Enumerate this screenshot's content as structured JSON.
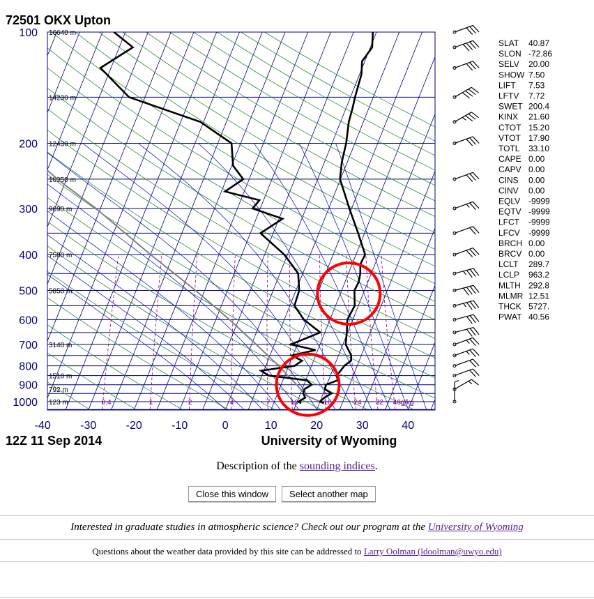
{
  "header": {
    "station_title": "72501 OKX Upton",
    "time_label": "12Z 11 Sep 2014",
    "source_label": "University of Wyoming"
  },
  "chart_data": {
    "type": "skew-t",
    "pressure_ticks": [
      100,
      200,
      300,
      400,
      500,
      600,
      700,
      800,
      900,
      1000
    ],
    "pressure_tick_labels": [
      "100",
      "200",
      "300",
      "400",
      "500",
      "600",
      "700",
      "800",
      "900",
      "1000"
    ],
    "temperature_ticks": [
      -40,
      -30,
      -20,
      -10,
      0,
      10,
      20,
      30,
      40
    ],
    "temperature_tick_labels": [
      "-40",
      "-30",
      "-20",
      "-10",
      "0",
      "10",
      "20",
      "30",
      "40"
    ],
    "xlim": [
      -40,
      45
    ],
    "ylim_pressure": [
      1050,
      100
    ],
    "height_labels": [
      {
        "p": 100,
        "label": "16640 m"
      },
      {
        "p": 150,
        "label": "14230 m"
      },
      {
        "p": 200,
        "label": "12430 m"
      },
      {
        "p": 250,
        "label": "10950 m"
      },
      {
        "p": 300,
        "label": "9690 m"
      },
      {
        "p": 400,
        "label": "7580 m"
      },
      {
        "p": 500,
        "label": "5850 m"
      },
      {
        "p": 700,
        "label": "3140 m"
      },
      {
        "p": 850,
        "label": "1510 m"
      },
      {
        "p": 925,
        "label": "792 m"
      },
      {
        "p": 1000,
        "label": "123 m"
      }
    ],
    "mixing_ratio_labels": [
      "0.4",
      "1",
      "2",
      "4",
      "7",
      "10",
      "16",
      "24",
      "32",
      "40g/kg"
    ],
    "temperature_profile": [
      {
        "p": 1010,
        "t": 21.0
      },
      {
        "p": 1000,
        "t": 20.0
      },
      {
        "p": 975,
        "t": 20.6
      },
      {
        "p": 950,
        "t": 21.8
      },
      {
        "p": 925,
        "t": 20.0
      },
      {
        "p": 900,
        "t": 19.8
      },
      {
        "p": 875,
        "t": 22.0
      },
      {
        "p": 850,
        "t": 21.4
      },
      {
        "p": 800,
        "t": 22.2
      },
      {
        "p": 775,
        "t": 23.2
      },
      {
        "p": 750,
        "t": 22.8
      },
      {
        "p": 700,
        "t": 20.6
      },
      {
        "p": 650,
        "t": 19.8
      },
      {
        "p": 600,
        "t": 18.8
      },
      {
        "p": 550,
        "t": 19.2
      },
      {
        "p": 500,
        "t": 17.8
      },
      {
        "p": 475,
        "t": 18.0
      },
      {
        "p": 450,
        "t": 17.6
      },
      {
        "p": 425,
        "t": 16.8
      },
      {
        "p": 400,
        "t": 17.0
      },
      {
        "p": 350,
        "t": 13.6
      },
      {
        "p": 300,
        "t": 9.5
      },
      {
        "p": 250,
        "t": 4.9
      },
      {
        "p": 225,
        "t": 3.8
      },
      {
        "p": 200,
        "t": 3.1
      },
      {
        "p": 175,
        "t": 1.8
      },
      {
        "p": 160,
        "t": 1.4
      },
      {
        "p": 150,
        "t": 1.0
      },
      {
        "p": 130,
        "t": 0.4
      },
      {
        "p": 120,
        "t": -0.6
      },
      {
        "p": 110,
        "t": 0.4
      },
      {
        "p": 100,
        "t": -0.8
      }
    ],
    "dewpoint_profile": [
      {
        "p": 1010,
        "t": 16.0
      },
      {
        "p": 1000,
        "t": 15.3
      },
      {
        "p": 975,
        "t": 16.4
      },
      {
        "p": 950,
        "t": 15.6
      },
      {
        "p": 925,
        "t": 15.5
      },
      {
        "p": 900,
        "t": 16.7
      },
      {
        "p": 875,
        "t": 15.2
      },
      {
        "p": 850,
        "t": 6.5
      },
      {
        "p": 825,
        "t": 4.4
      },
      {
        "p": 800,
        "t": 11.3
      },
      {
        "p": 775,
        "t": 12.5
      },
      {
        "p": 750,
        "t": 9.8
      },
      {
        "p": 725,
        "t": 14.5
      },
      {
        "p": 700,
        "t": 8.6
      },
      {
        "p": 650,
        "t": 14.0
      },
      {
        "p": 600,
        "t": 9.3
      },
      {
        "p": 550,
        "t": 6.0
      },
      {
        "p": 500,
        "t": 5.7
      },
      {
        "p": 450,
        "t": 4.0
      },
      {
        "p": 400,
        "t": -0.7
      },
      {
        "p": 350,
        "t": -7.8
      },
      {
        "p": 320,
        "t": -4.2
      },
      {
        "p": 300,
        "t": -11.7
      },
      {
        "p": 285,
        "t": -10.9
      },
      {
        "p": 270,
        "t": -19.2
      },
      {
        "p": 250,
        "t": -16.3
      },
      {
        "p": 230,
        "t": -19.7
      },
      {
        "p": 200,
        "t": -22.0
      },
      {
        "p": 175,
        "t": -30.7
      },
      {
        "p": 150,
        "t": -48.5
      },
      {
        "p": 125,
        "t": -57.3
      },
      {
        "p": 110,
        "t": -52.0
      },
      {
        "p": 100,
        "t": -57.5
      }
    ],
    "parcel_profile": [
      {
        "p": 1000,
        "t": 20.0
      },
      {
        "p": 963,
        "t": 16.5
      },
      {
        "p": 900,
        "t": 13.4
      },
      {
        "p": 800,
        "t": 7.8
      },
      {
        "p": 700,
        "t": 1.0
      },
      {
        "p": 600,
        "t": -7.0
      },
      {
        "p": 500,
        "t": -17.0
      },
      {
        "p": 400,
        "t": -30.0
      },
      {
        "p": 300,
        "t": -46.0
      },
      {
        "p": 250,
        "t": -57.0
      },
      {
        "p": 200,
        "t": -69.0
      },
      {
        "p": 150,
        "t": -84.0
      },
      {
        "p": 100,
        "t": -105.0
      }
    ],
    "wind_barbs": [
      {
        "p": 1000,
        "dir": 180,
        "spd": 5
      },
      {
        "p": 925,
        "dir": 240,
        "spd": 15
      },
      {
        "p": 850,
        "dir": 250,
        "spd": 20
      },
      {
        "p": 800,
        "dir": 250,
        "spd": 20
      },
      {
        "p": 750,
        "dir": 250,
        "spd": 25
      },
      {
        "p": 700,
        "dir": 250,
        "spd": 25
      },
      {
        "p": 650,
        "dir": 255,
        "spd": 30
      },
      {
        "p": 600,
        "dir": 255,
        "spd": 30
      },
      {
        "p": 550,
        "dir": 255,
        "spd": 35
      },
      {
        "p": 500,
        "dir": 255,
        "spd": 40
      },
      {
        "p": 450,
        "dir": 255,
        "spd": 35
      },
      {
        "p": 400,
        "dir": 250,
        "spd": 30
      },
      {
        "p": 350,
        "dir": 250,
        "spd": 20
      },
      {
        "p": 300,
        "dir": 250,
        "spd": 25
      },
      {
        "p": 250,
        "dir": 250,
        "spd": 30
      },
      {
        "p": 200,
        "dir": 250,
        "spd": 30
      },
      {
        "p": 175,
        "dir": 240,
        "spd": 35
      },
      {
        "p": 150,
        "dir": 240,
        "spd": 40
      },
      {
        "p": 125,
        "dir": 250,
        "spd": 30
      },
      {
        "p": 110,
        "dir": 250,
        "spd": 40
      },
      {
        "p": 100,
        "dir": 250,
        "spd": 30
      }
    ],
    "highlight_circles": [
      {
        "t": 26.0,
        "p": 510,
        "label": ""
      },
      {
        "t": 25.0,
        "p": 900,
        "label": ""
      }
    ],
    "colors": {
      "isobar": "#00007a",
      "isotherm": "#00007a",
      "dry_adiabat": "#2e8b2e",
      "moist_adiabat": "#0000cd",
      "mixing_ratio": "#800080",
      "sounding": "#000000",
      "parcel": "#808080",
      "highlight": "#ff0000"
    }
  },
  "indices": [
    {
      "name": "SLAT",
      "value": "40.87"
    },
    {
      "name": "SLON",
      "value": "-72.86"
    },
    {
      "name": "SELV",
      "value": "20.00"
    },
    {
      "name": "SHOW",
      "value": "7.50"
    },
    {
      "name": "LIFT",
      "value": "7.53"
    },
    {
      "name": "LFTV",
      "value": "7.72"
    },
    {
      "name": "SWET",
      "value": "200.4"
    },
    {
      "name": "KINX",
      "value": "21.60"
    },
    {
      "name": "CTOT",
      "value": "15.20"
    },
    {
      "name": "VTOT",
      "value": "17.90"
    },
    {
      "name": "TOTL",
      "value": "33.10"
    },
    {
      "name": "CAPE",
      "value": "0.00"
    },
    {
      "name": "CAPV",
      "value": "0.00"
    },
    {
      "name": "CINS",
      "value": "0.00"
    },
    {
      "name": "CINV",
      "value": "0.00"
    },
    {
      "name": "EQLV",
      "value": "-9999"
    },
    {
      "name": "EQTV",
      "value": "-9999"
    },
    {
      "name": "LFCT",
      "value": "-9999"
    },
    {
      "name": "LFCV",
      "value": "-9999"
    },
    {
      "name": "BRCH",
      "value": "0.00"
    },
    {
      "name": "BRCV",
      "value": "0.00"
    },
    {
      "name": "LCLT",
      "value": "289.7"
    },
    {
      "name": "LCLP",
      "value": "963.2"
    },
    {
      "name": "MLTH",
      "value": "292.8"
    },
    {
      "name": "MLMR",
      "value": "12.51"
    },
    {
      "name": "THCK",
      "value": "5727."
    },
    {
      "name": "PWAT",
      "value": "40.56"
    }
  ],
  "description": {
    "prefix": "Description of the ",
    "link": "sounding indices",
    "suffix": "."
  },
  "buttons": {
    "close_label": "Close this window",
    "select_label": "Select another map"
  },
  "footer": {
    "promo_text": "Interested in graduate studies in atmospheric science? Check out our program at the ",
    "promo_link": "University of Wyoming",
    "contact_text": "Questions about the weather data provided by this site can be addressed to ",
    "contact_link": "Larry Oolman (ldoolman@uwyo.edu)"
  }
}
